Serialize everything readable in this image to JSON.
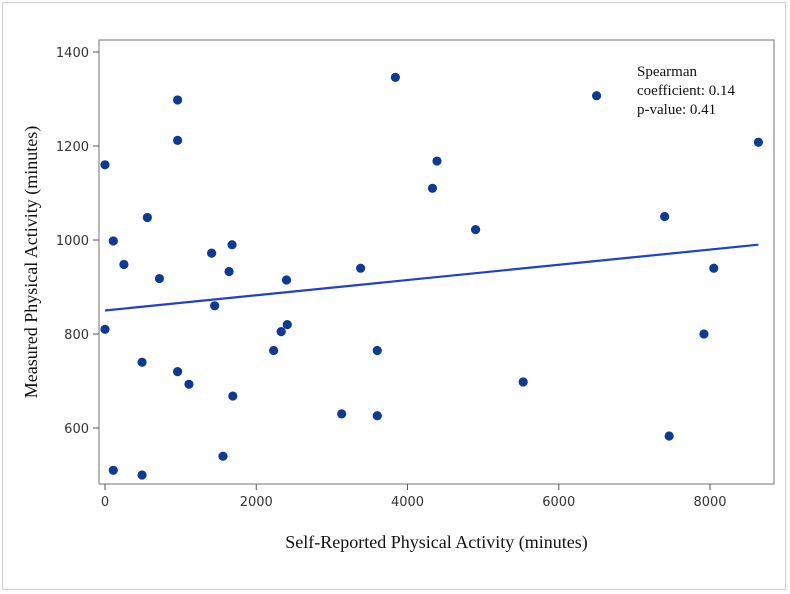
{
  "chart_data": {
    "type": "scatter",
    "title": "",
    "xlabel": "Self-Reported Physical Activity (minutes)",
    "ylabel": "Measured Physical Activity (minutes)",
    "xlim": [
      -100,
      8700
    ],
    "ylim": [
      480,
      1410
    ],
    "xticks": [
      0,
      2000,
      4000,
      6000,
      8000
    ],
    "yticks": [
      600,
      800,
      1000,
      1200,
      1400
    ],
    "grid": false,
    "annotation": [
      "Spearman",
      "coefficient: 0.14",
      "p-value: 0.41"
    ],
    "point_color": "#0d3a94",
    "line_color": "#1f3fd1",
    "points": [
      {
        "x": 0,
        "y": 1160
      },
      {
        "x": 0,
        "y": 810
      },
      {
        "x": 110,
        "y": 998
      },
      {
        "x": 110,
        "y": 510
      },
      {
        "x": 250,
        "y": 948
      },
      {
        "x": 490,
        "y": 740
      },
      {
        "x": 490,
        "y": 500
      },
      {
        "x": 560,
        "y": 1048
      },
      {
        "x": 720,
        "y": 918
      },
      {
        "x": 960,
        "y": 1298
      },
      {
        "x": 960,
        "y": 1212
      },
      {
        "x": 960,
        "y": 720
      },
      {
        "x": 1110,
        "y": 693
      },
      {
        "x": 1410,
        "y": 972
      },
      {
        "x": 1450,
        "y": 860
      },
      {
        "x": 1560,
        "y": 540
      },
      {
        "x": 1640,
        "y": 933
      },
      {
        "x": 1680,
        "y": 990
      },
      {
        "x": 1690,
        "y": 668
      },
      {
        "x": 2230,
        "y": 765
      },
      {
        "x": 2330,
        "y": 805
      },
      {
        "x": 2400,
        "y": 915
      },
      {
        "x": 2410,
        "y": 820
      },
      {
        "x": 3130,
        "y": 630
      },
      {
        "x": 3380,
        "y": 940
      },
      {
        "x": 3600,
        "y": 765
      },
      {
        "x": 3600,
        "y": 626
      },
      {
        "x": 3840,
        "y": 1346
      },
      {
        "x": 4330,
        "y": 1110
      },
      {
        "x": 4390,
        "y": 1168
      },
      {
        "x": 4900,
        "y": 1022
      },
      {
        "x": 5530,
        "y": 698
      },
      {
        "x": 6500,
        "y": 1307
      },
      {
        "x": 7400,
        "y": 1050
      },
      {
        "x": 7460,
        "y": 583
      },
      {
        "x": 7920,
        "y": 800
      },
      {
        "x": 8050,
        "y": 940
      },
      {
        "x": 8640,
        "y": 1208
      }
    ],
    "fit_line": {
      "x": [
        0,
        8640
      ],
      "y": [
        850,
        990
      ]
    }
  }
}
